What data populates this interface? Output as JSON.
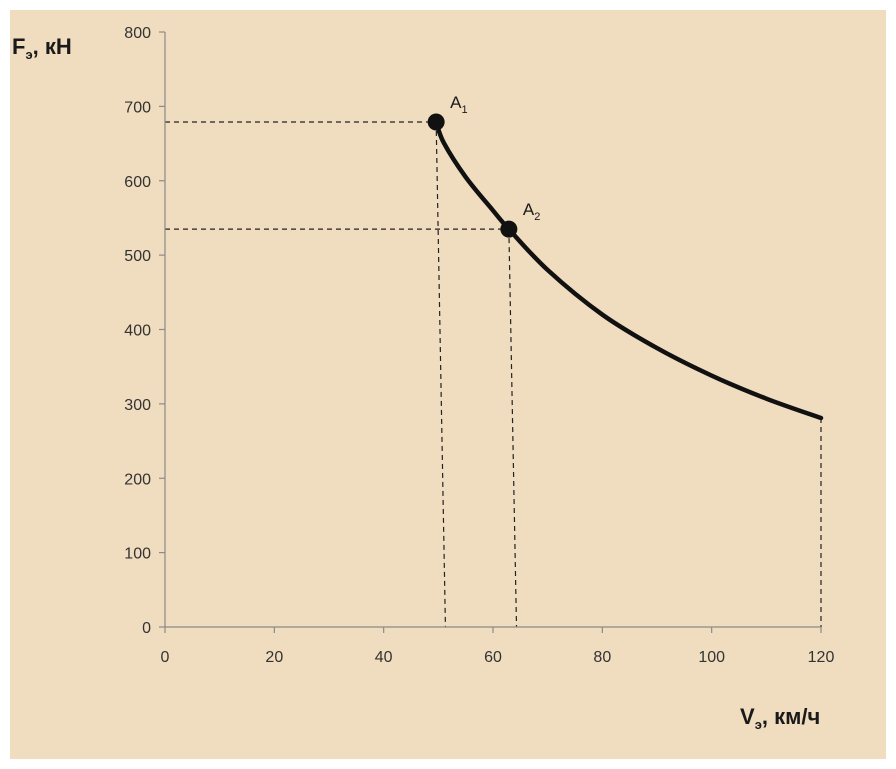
{
  "chart_data": {
    "type": "line",
    "xlabel": {
      "main": "V",
      "sub": "э",
      "rest": ", км/ч"
    },
    "ylabel": {
      "main": "F",
      "sub": "э",
      "rest": ", кН"
    },
    "xlim": [
      0,
      120
    ],
    "ylim": [
      0,
      800
    ],
    "x_ticks": [
      "0",
      "20",
      "40",
      "60",
      "80",
      "100",
      "120"
    ],
    "y_ticks": [
      "0",
      "100",
      "200",
      "300",
      "400",
      "500",
      "600",
      "700",
      "800"
    ],
    "grid": false,
    "series": [
      {
        "x": [
          49.6,
          51,
          55,
          60,
          62.9,
          70,
          80,
          90,
          100,
          110,
          120
        ],
        "y": [
          679,
          651,
          605,
          560,
          535,
          480,
          420,
          375,
          338,
          307,
          281
        ]
      }
    ],
    "points": [
      {
        "name": "A",
        "sub": "1",
        "x": 49.6,
        "y": 679
      },
      {
        "name": "A",
        "sub": "2",
        "x": 62.9,
        "y": 535
      }
    ],
    "guides": [
      {
        "x": 49.6,
        "y": 679,
        "x_drop": 51.3
      },
      {
        "x": 62.9,
        "y": 535,
        "x_drop": 64.3
      },
      {
        "x": 120,
        "y": 281,
        "x_drop": 120
      }
    ],
    "colors": {
      "background": "#f0dcbf",
      "line": "#111111",
      "axis": "#8a8a8a"
    }
  }
}
